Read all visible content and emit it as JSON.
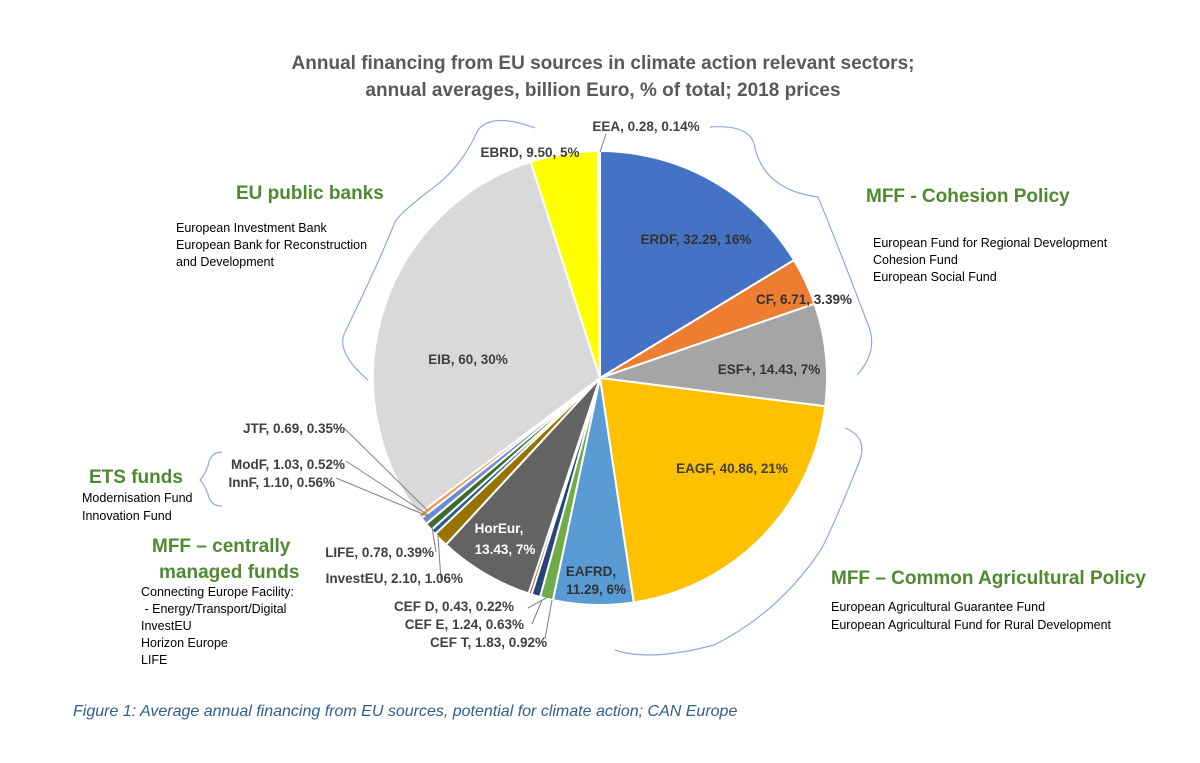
{
  "chart_data": {
    "type": "pie",
    "title_line1": "Annual financing from EU sources in climate action relevant sectors;",
    "title_line2": "annual averages, billion Euro, % of total; 2018 prices",
    "unit": "billion Euro",
    "slices": [
      {
        "key": "erdf",
        "name": "ERDF",
        "value": 32.29,
        "pct_label": "16%",
        "label": "ERDF, 32.29, 16%",
        "color": "#4472c4",
        "text_color": "#333333"
      },
      {
        "key": "cf",
        "name": "CF",
        "value": 6.71,
        "pct_label": "3.39%",
        "label": "CF, 6.71, 3.39%",
        "color": "#ed7d31",
        "text_color": "#333333"
      },
      {
        "key": "esf",
        "name": "ESF+",
        "value": 14.43,
        "pct_label": "7%",
        "label": "ESF+, 14.43, 7%",
        "color": "#a5a5a5",
        "text_color": "#333333"
      },
      {
        "key": "eagf",
        "name": "EAGF",
        "value": 40.86,
        "pct_label": "21%",
        "label": "EAGF, 40.86, 21%",
        "color": "#ffc000",
        "text_color": "#404040"
      },
      {
        "key": "eafrd",
        "name": "EAFRD",
        "value": 11.29,
        "pct_label": "6%",
        "label_line1": "EAFRD,",
        "label_line2": "11.29, 6%",
        "color": "#5b9bd5",
        "text_color": "#333333"
      },
      {
        "key": "ceft",
        "name": "CEF T",
        "value": 1.83,
        "pct_label": "0.92%",
        "label": "CEF T, 1.83, 0.92%",
        "color": "#70ad47"
      },
      {
        "key": "cefe",
        "name": "CEF E",
        "value": 1.24,
        "pct_label": "0.63%",
        "label": "CEF E, 1.24, 0.63%",
        "color": "#264478"
      },
      {
        "key": "cefd",
        "name": "CEF D",
        "value": 0.43,
        "pct_label": "0.22%",
        "label": "CEF D, 0.43, 0.22%",
        "color": "#9e480e"
      },
      {
        "key": "horeur",
        "name": "HorEur",
        "value": 13.43,
        "pct_label": "7%",
        "label_line1": "HorEur,",
        "label_line2": "13.43, 7%",
        "color": "#636363",
        "text_color": "#ffffff"
      },
      {
        "key": "investeu",
        "name": "InvestEU",
        "value": 2.1,
        "pct_label": "1.06%",
        "label": "InvestEU, 2.10, 1.06%",
        "color": "#997300"
      },
      {
        "key": "life",
        "name": "LIFE",
        "value": 0.78,
        "pct_label": "0.39%",
        "label": "LIFE, 0.78, 0.39%",
        "color": "#255e91"
      },
      {
        "key": "innf",
        "name": "InnF",
        "value": 1.1,
        "pct_label": "0.56%",
        "label": "InnF, 1.10, 0.56%",
        "color": "#43682b"
      },
      {
        "key": "modf",
        "name": "ModF",
        "value": 1.03,
        "pct_label": "0.52%",
        "label": "ModF, 1.03, 0.52%",
        "color": "#698ed0"
      },
      {
        "key": "jtf",
        "name": "JTF",
        "value": 0.69,
        "pct_label": "0.35%",
        "label": "JTF, 0.69, 0.35%",
        "color": "#f1975a"
      },
      {
        "key": "eib",
        "name": "EIB",
        "value": 60,
        "pct_label": "30%",
        "label": "EIB, 60, 30%",
        "color": "#d9d9d9",
        "text_color": "#404040"
      },
      {
        "key": "ebrd",
        "name": "EBRD",
        "value": 9.5,
        "pct_label": "5%",
        "label": "EBRD, 9.50, 5%",
        "color": "#ffff00"
      },
      {
        "key": "eea",
        "name": "EEA",
        "value": 0.28,
        "pct_label": "0.14%",
        "label": "EEA, 0.28, 0.14%",
        "color": "#5b9bd5"
      }
    ],
    "groups": {
      "cohesion": {
        "title": "MFF - Cohesion Policy",
        "desc": [
          "European Fund for Regional Development",
          "Cohesion Fund",
          "European Social Fund"
        ]
      },
      "cap": {
        "title": "MFF – Common Agricultural Policy",
        "desc": [
          "European Agricultural Guarantee Fund",
          "European Agricultural Fund for Rural Development"
        ]
      },
      "central": {
        "title_line1": "MFF – centrally",
        "title_line2": "managed funds",
        "desc": [
          "Connecting Europe Facility:",
          " - Energy/Transport/Digital",
          "InvestEU",
          "Horizon Europe",
          "LIFE"
        ]
      },
      "ets": {
        "title": "ETS funds",
        "desc": [
          "Modernisation Fund",
          "Innovation Fund"
        ]
      },
      "banks": {
        "title": "EU public banks",
        "desc": [
          "European Investment Bank",
          "European Bank for  Reconstruction",
          "and Development"
        ]
      }
    }
  },
  "caption": "Figure 1: Average annual financing from EU sources, potential for climate action; CAN Europe",
  "colors": {
    "group_title": "#4e8a2f",
    "bracket": "#8faadc",
    "caption": "#2f5f8f"
  }
}
